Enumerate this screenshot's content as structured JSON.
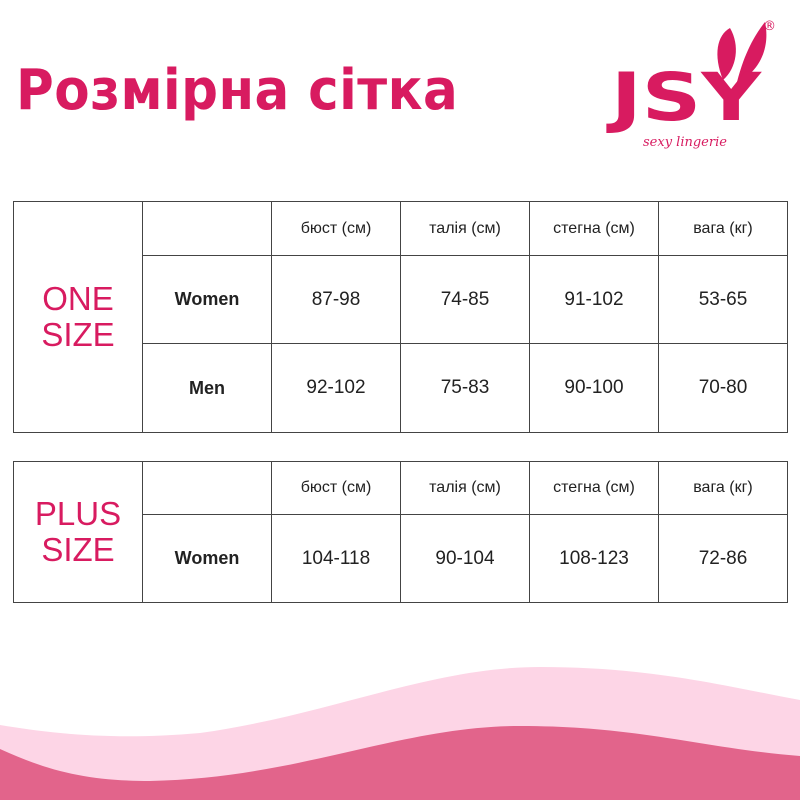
{
  "title": "Розмірна сітка",
  "logo": {
    "text": "JSY",
    "tagline": "sexy lingerie",
    "registered": "®"
  },
  "colors": {
    "accent": "#d81b60",
    "wave_light": "#fdd5e6",
    "wave_dark": "#e2648b"
  },
  "headers": [
    "бюст (см)",
    "талія (см)",
    "стегна (см)",
    "вага (кг)"
  ],
  "one_size": {
    "label_line1": "ONE",
    "label_line2": "SIZE",
    "rows": [
      {
        "label": "Women",
        "values": [
          "87-98",
          "74-85",
          "91-102",
          "53-65"
        ]
      },
      {
        "label": "Men",
        "values": [
          "92-102",
          "75-83",
          "90-100",
          "70-80"
        ]
      }
    ]
  },
  "plus_size": {
    "label_line1": "PLUS",
    "label_line2": "SIZE",
    "rows": [
      {
        "label": "Women",
        "values": [
          "104-118",
          "90-104",
          "108-123",
          "72-86"
        ]
      }
    ]
  }
}
